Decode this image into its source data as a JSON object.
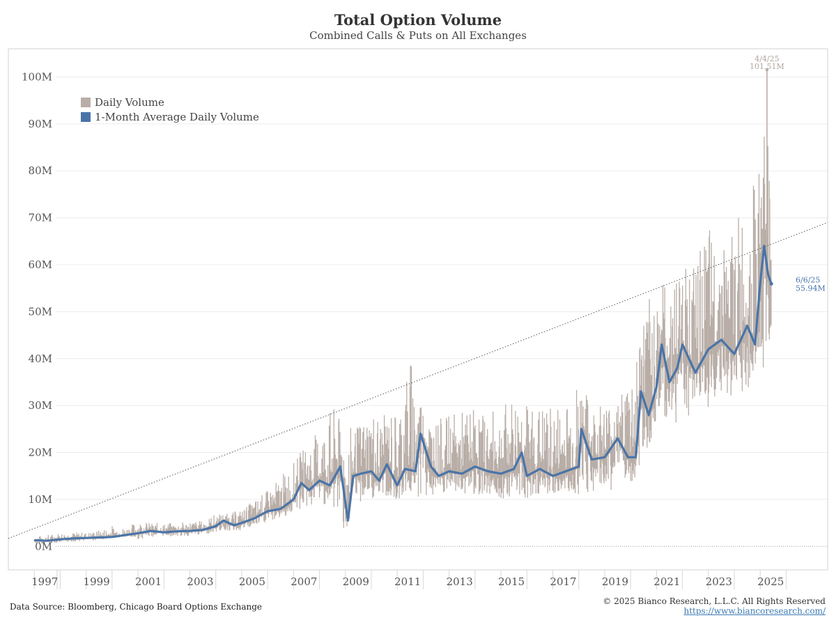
{
  "header": {
    "title": "Total Option Volume",
    "subtitle": "Combined Calls & Puts on All Exchanges"
  },
  "footer": {
    "source": "Data Source: Bloomberg, Chicago Board Options Exchange",
    "copyright": "© 2025 Bianco Research, L.L.C. All Rights Reserved",
    "url": "https://www.biancoresearch.com/"
  },
  "colors": {
    "daily": "#b9aea7",
    "average": "#4a74a8",
    "grid": "#ececec",
    "trend": "#555555",
    "peak_label": "#b0a49c"
  },
  "chart_data": {
    "type": "line",
    "y_unit": "M",
    "ylim": [
      -5,
      106
    ],
    "xlim": [
      1996.0,
      2027.6
    ],
    "y_ticks": [
      0,
      10,
      20,
      30,
      40,
      50,
      60,
      70,
      80,
      90,
      100
    ],
    "y_tick_labels": [
      "0M",
      "10M",
      "20M",
      "30M",
      "40M",
      "50M",
      "60M",
      "70M",
      "80M",
      "90M",
      "100M"
    ],
    "x_ticks": [
      1997,
      1999,
      2001,
      2003,
      2005,
      2007,
      2009,
      2011,
      2013,
      2015,
      2017,
      2019,
      2021,
      2023,
      2025
    ],
    "grid": true,
    "legend_position": "top-left",
    "series": [
      {
        "name": "Daily Volume",
        "style": "spiky-range",
        "x": [
          1997.0,
          1997.5,
          1998.0,
          1998.5,
          1999.0,
          1999.5,
          2000.0,
          2000.5,
          2001.0,
          2001.5,
          2002.0,
          2002.5,
          2003.0,
          2003.5,
          2004.0,
          2004.5,
          2005.0,
          2005.5,
          2006.0,
          2006.5,
          2007.0,
          2007.5,
          2008.0,
          2008.5,
          2009.0,
          2009.5,
          2010.0,
          2010.5,
          2011.0,
          2011.5,
          2012.0,
          2012.5,
          2013.0,
          2013.5,
          2014.0,
          2014.5,
          2015.0,
          2015.5,
          2016.0,
          2016.5,
          2017.0,
          2017.5,
          2018.0,
          2018.5,
          2019.0,
          2019.5,
          2020.0,
          2020.5,
          2021.0,
          2021.5,
          2022.0,
          2022.5,
          2023.0,
          2023.5,
          2024.0,
          2024.5,
          2025.0,
          2025.25,
          2025.43
        ],
        "low": [
          0.5,
          0.6,
          0.8,
          1.0,
          1.2,
          1.3,
          1.8,
          1.9,
          1.5,
          2.0,
          2.2,
          2.0,
          2.2,
          2.5,
          3.0,
          3.2,
          3.3,
          4.0,
          5.0,
          6.0,
          7.0,
          8.0,
          9.5,
          8.0,
          3.0,
          9.0,
          10.0,
          10.0,
          10.0,
          11.0,
          10.0,
          10.0,
          11.0,
          11.0,
          11.0,
          11.0,
          10.0,
          11.0,
          10.0,
          11.0,
          11.0,
          11.0,
          11.0,
          11.0,
          12.0,
          12.0,
          12.0,
          19.0,
          25.0,
          25.0,
          27.0,
          28.0,
          28.0,
          30.0,
          32.0,
          33.0,
          36.0,
          40.0,
          44.0
        ],
        "high": [
          2.0,
          2.5,
          3.0,
          3.0,
          3.0,
          3.5,
          4.5,
          4.0,
          5.5,
          5.0,
          5.0,
          5.0,
          5.5,
          5.5,
          7.0,
          7.0,
          8.0,
          10.0,
          12.0,
          15.0,
          18.0,
          22.0,
          25.0,
          30.0,
          25.0,
          26.0,
          30.0,
          28.0,
          30.0,
          41.5,
          30.0,
          27.0,
          28.0,
          29.0,
          30.0,
          28.0,
          30.0,
          32.0,
          31.0,
          30.0,
          30.0,
          32.0,
          36.0,
          30.0,
          32.0,
          30.0,
          40.0,
          50.0,
          58.0,
          55.0,
          62.0,
          60.0,
          68.0,
          65.0,
          70.0,
          73.0,
          82.0,
          101.51,
          60.0
        ]
      },
      {
        "name": "1-Month Average Daily Volume",
        "x": [
          1997.0,
          1997.5,
          1998.0,
          1998.5,
          1999.0,
          1999.5,
          2000.0,
          2000.5,
          2001.0,
          2001.5,
          2002.0,
          2002.5,
          2003.0,
          2003.5,
          2004.0,
          2004.3,
          2004.7,
          2005.0,
          2005.5,
          2006.0,
          2006.5,
          2007.0,
          2007.3,
          2007.6,
          2008.0,
          2008.4,
          2008.8,
          2009.1,
          2009.3,
          2009.6,
          2010.0,
          2010.3,
          2010.6,
          2011.0,
          2011.3,
          2011.7,
          2011.9,
          2012.3,
          2012.6,
          2013.0,
          2013.5,
          2014.0,
          2014.5,
          2015.0,
          2015.5,
          2015.8,
          2016.0,
          2016.5,
          2017.0,
          2017.5,
          2018.0,
          2018.1,
          2018.5,
          2019.0,
          2019.5,
          2019.9,
          2020.2,
          2020.4,
          2020.7,
          2021.0,
          2021.2,
          2021.5,
          2021.8,
          2022.0,
          2022.5,
          2023.0,
          2023.5,
          2024.0,
          2024.5,
          2024.8,
          2025.0,
          2025.15,
          2025.3,
          2025.43
        ],
        "values": [
          1.3,
          1.2,
          1.5,
          1.7,
          1.8,
          1.9,
          2.0,
          2.4,
          2.8,
          3.3,
          3.0,
          3.2,
          3.3,
          3.5,
          4.3,
          5.5,
          4.5,
          5.0,
          6.0,
          7.5,
          8.0,
          10.0,
          13.5,
          12.0,
          14.0,
          13.0,
          17.0,
          5.5,
          15.0,
          15.5,
          16.0,
          14.0,
          17.5,
          13.0,
          16.5,
          16.0,
          24.0,
          17.0,
          15.0,
          16.0,
          15.5,
          17.0,
          16.0,
          15.5,
          16.5,
          20.0,
          15.0,
          16.5,
          15.0,
          16.0,
          17.0,
          25.0,
          18.5,
          19.0,
          23.0,
          19.0,
          19.0,
          33.0,
          28.0,
          34.0,
          43.0,
          35.0,
          38.0,
          43.0,
          37.0,
          42.0,
          44.0,
          41.0,
          47.0,
          43.0,
          56.0,
          64.0,
          58.0,
          55.94
        ]
      }
    ],
    "trend_line": {
      "x": [
        1996.0,
        2027.6
      ],
      "values": [
        1.7,
        69.0
      ]
    },
    "annotations": [
      {
        "date": "4/4/25",
        "value_label": "101.51M",
        "x": 2025.26,
        "y": 101.51,
        "series": "Daily Volume"
      },
      {
        "date": "6/6/25",
        "value_label": "55.94M",
        "x": 2025.43,
        "y": 55.94,
        "series": "1-Month Average Daily Volume"
      }
    ]
  }
}
